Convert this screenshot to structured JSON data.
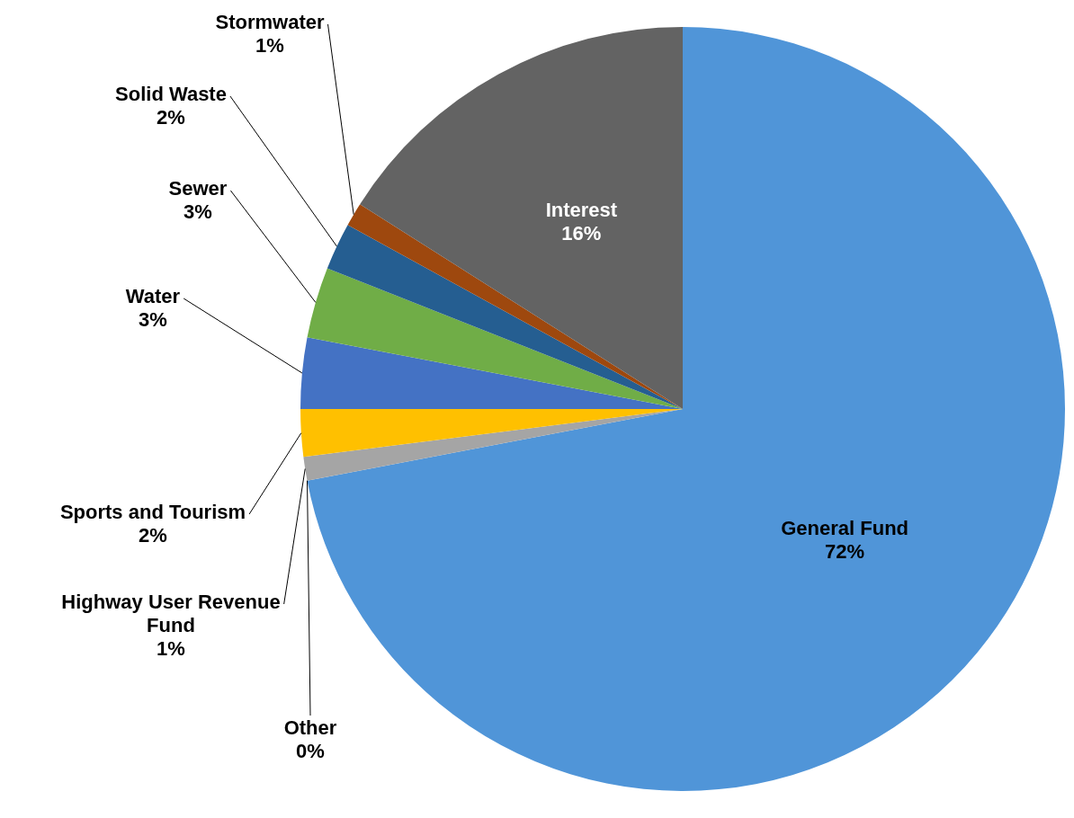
{
  "chart_data": {
    "type": "pie",
    "categories": [
      "General Fund",
      "Other",
      "Highway User Revenue Fund",
      "Sports and Tourism",
      "Water",
      "Sewer",
      "Solid Waste",
      "Stormwater",
      "Interest"
    ],
    "values": [
      72,
      0,
      1,
      2,
      3,
      3,
      2,
      1,
      16
    ],
    "value_labels": [
      "72%",
      "0%",
      "1%",
      "2%",
      "3%",
      "3%",
      "2%",
      "1%",
      "16%"
    ],
    "colors": [
      "#5095d8",
      "#ed7d31",
      "#a5a5a5",
      "#ffc000",
      "#4472c4",
      "#70ad47",
      "#255e91",
      "#9e480e",
      "#636363"
    ],
    "data_labels": true
  }
}
